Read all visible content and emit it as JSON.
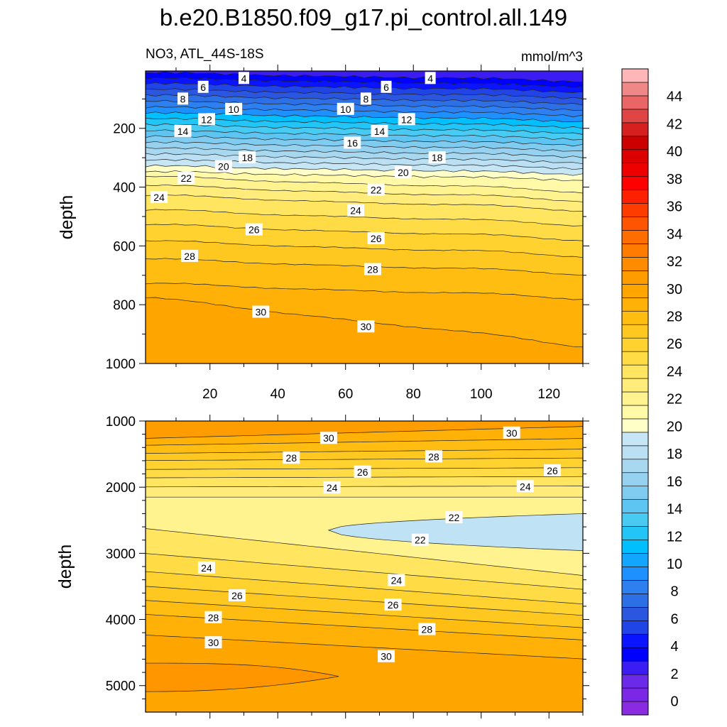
{
  "title": "b.e20.B1850.f09_g17.pi_control.all.149",
  "subtitle_left": "NO3, ATL_44S-18S",
  "subtitle_right": "mmol/m^3",
  "colors": {
    "deep_purple": "#8a2be2",
    "blue": "#0000ff",
    "light_blue": "#bfe3f5",
    "pale_yellow": "#ffffc8",
    "orange": "#ffa000",
    "red": "#ff0000",
    "pink": "#ffb6b6"
  },
  "chart_data": [
    {
      "type": "contour",
      "panel": "upper",
      "variable": "NO3",
      "region": "ATL_44S-18S",
      "units": "mmol/m^3",
      "xlabel": "",
      "ylabel": "depth",
      "xlim": [
        1,
        130
      ],
      "ylim": [
        1000,
        5
      ],
      "xticks": [
        20,
        40,
        60,
        80,
        100,
        120
      ],
      "yticks": [
        200,
        400,
        600,
        800,
        1000
      ],
      "profile": [
        {
          "depth": 5,
          "value": 3
        },
        {
          "depth": 60,
          "value": 6
        },
        {
          "depth": 120,
          "value": 9
        },
        {
          "depth": 180,
          "value": 12
        },
        {
          "depth": 240,
          "value": 15
        },
        {
          "depth": 300,
          "value": 18
        },
        {
          "depth": 360,
          "value": 21
        },
        {
          "depth": 400,
          "value": 22.5
        },
        {
          "depth": 450,
          "value": 24
        },
        {
          "depth": 550,
          "value": 26
        },
        {
          "depth": 650,
          "value": 27.8
        },
        {
          "depth": 750,
          "value": 29
        },
        {
          "depth": 850,
          "value": 30
        },
        {
          "depth": 1000,
          "value": 31
        }
      ],
      "contour_labels": [
        {
          "text": "4",
          "x": 30,
          "depth": 30
        },
        {
          "text": "4",
          "x": 85,
          "depth": 30
        },
        {
          "text": "6",
          "x": 18,
          "depth": 60
        },
        {
          "text": "6",
          "x": 72,
          "depth": 60
        },
        {
          "text": "8",
          "x": 12,
          "depth": 100
        },
        {
          "text": "8",
          "x": 66,
          "depth": 100
        },
        {
          "text": "10",
          "x": 27,
          "depth": 135
        },
        {
          "text": "10",
          "x": 60,
          "depth": 135
        },
        {
          "text": "12",
          "x": 19,
          "depth": 170
        },
        {
          "text": "12",
          "x": 78,
          "depth": 170
        },
        {
          "text": "14",
          "x": 12,
          "depth": 210
        },
        {
          "text": "14",
          "x": 70,
          "depth": 210
        },
        {
          "text": "16",
          "x": 62,
          "depth": 250
        },
        {
          "text": "18",
          "x": 31,
          "depth": 300
        },
        {
          "text": "18",
          "x": 87,
          "depth": 300
        },
        {
          "text": "20",
          "x": 24,
          "depth": 330
        },
        {
          "text": "20",
          "x": 77,
          "depth": 350
        },
        {
          "text": "22",
          "x": 13,
          "depth": 370
        },
        {
          "text": "22",
          "x": 69,
          "depth": 410
        },
        {
          "text": "24",
          "x": 5,
          "depth": 435
        },
        {
          "text": "24",
          "x": 63,
          "depth": 480
        },
        {
          "text": "26",
          "x": 33,
          "depth": 545
        },
        {
          "text": "26",
          "x": 69,
          "depth": 575
        },
        {
          "text": "28",
          "x": 14,
          "depth": 635
        },
        {
          "text": "28",
          "x": 68,
          "depth": 680
        },
        {
          "text": "30",
          "x": 35,
          "depth": 825
        },
        {
          "text": "30",
          "x": 66,
          "depth": 875
        }
      ]
    },
    {
      "type": "contour",
      "panel": "lower",
      "variable": "NO3",
      "region": "ATL_44S-18S",
      "units": "mmol/m^3",
      "xlabel": "",
      "ylabel": "depth",
      "xlim": [
        1,
        130
      ],
      "ylim": [
        5400,
        1000
      ],
      "xticks": [
        20,
        40,
        60,
        80,
        100,
        120
      ],
      "yticks": [
        1000,
        2000,
        3000,
        4000,
        5000
      ],
      "regions": [
        {
          "value_range": "28-30",
          "depth_range": [
            1000,
            1400
          ]
        },
        {
          "value_range": "24-28",
          "depth_range": [
            1400,
            2150
          ]
        },
        {
          "value_range": "22-24",
          "depth_range": [
            2150,
            2900
          ]
        },
        {
          "value_range": "20-22",
          "description": "lens",
          "x_range": [
            55,
            130
          ],
          "depth_range": [
            2400,
            2950
          ]
        },
        {
          "value_range": "24-28",
          "depth_range": [
            3000,
            4200
          ]
        },
        {
          "value_range": "30-32",
          "depth_range": [
            4250,
            5400
          ]
        },
        {
          "value_range": "32-34",
          "description": "deep core",
          "x_range": [
            1,
            58
          ],
          "depth_range": [
            4650,
            5100
          ]
        }
      ],
      "contour_labels": [
        {
          "text": "30",
          "x": 55,
          "depth": 1260
        },
        {
          "text": "30",
          "x": 109,
          "depth": 1180
        },
        {
          "text": "28",
          "x": 44,
          "depth": 1560
        },
        {
          "text": "28",
          "x": 86,
          "depth": 1540
        },
        {
          "text": "26",
          "x": 65,
          "depth": 1770
        },
        {
          "text": "26",
          "x": 121,
          "depth": 1750
        },
        {
          "text": "24",
          "x": 56,
          "depth": 2010
        },
        {
          "text": "24",
          "x": 113,
          "depth": 1990
        },
        {
          "text": "22",
          "x": 92,
          "depth": 2460
        },
        {
          "text": "22",
          "x": 82,
          "depth": 2800
        },
        {
          "text": "24",
          "x": 19,
          "depth": 3220
        },
        {
          "text": "24",
          "x": 75,
          "depth": 3410
        },
        {
          "text": "26",
          "x": 28,
          "depth": 3640
        },
        {
          "text": "26",
          "x": 74,
          "depth": 3780
        },
        {
          "text": "28",
          "x": 21,
          "depth": 3970
        },
        {
          "text": "28",
          "x": 84,
          "depth": 4150
        },
        {
          "text": "30",
          "x": 21,
          "depth": 4350
        },
        {
          "text": "30",
          "x": 72,
          "depth": 4560
        }
      ]
    },
    {
      "type": "colorbar",
      "levels": [
        0,
        2,
        4,
        6,
        8,
        10,
        12,
        14,
        16,
        18,
        20,
        22,
        24,
        26,
        28,
        30,
        32,
        34,
        36,
        38,
        40,
        42,
        44
      ],
      "labels": [
        "0",
        "2",
        "4",
        "6",
        "8",
        "10",
        "12",
        "14",
        "16",
        "18",
        "20",
        "22",
        "24",
        "26",
        "28",
        "30",
        "32",
        "34",
        "36",
        "38",
        "40",
        "42",
        "44"
      ],
      "colors": [
        "#8a2be2",
        "#7a28e6",
        "#6a2ae8",
        "#3b1cf2",
        "#0000ff",
        "#0a14ff",
        "#2144e6",
        "#2b56e0",
        "#2d70e6",
        "#2e7ff0",
        "#1e90ff",
        "#12a6ff",
        "#00bfff",
        "#22c5f5",
        "#48cbf2",
        "#5ec4f1",
        "#80cbf0",
        "#97d1f0",
        "#a8d7f0",
        "#bbe0f4",
        "#c6e6f6",
        "#ffffc8",
        "#fff9a8",
        "#fff38f",
        "#ffec7a",
        "#ffe560",
        "#ffdc45",
        "#ffd230",
        "#ffc820",
        "#ffbd12",
        "#ffb108",
        "#ffa500",
        "#ff9d00",
        "#ff8c00",
        "#ff7c00",
        "#ff6c00",
        "#ff5400",
        "#ff3c00",
        "#ff2000",
        "#ff0000",
        "#ee0000",
        "#dd0000",
        "#cc0000",
        "#d62020",
        "#e04545",
        "#ea6565",
        "#f08888",
        "#ffb6b6"
      ]
    }
  ]
}
